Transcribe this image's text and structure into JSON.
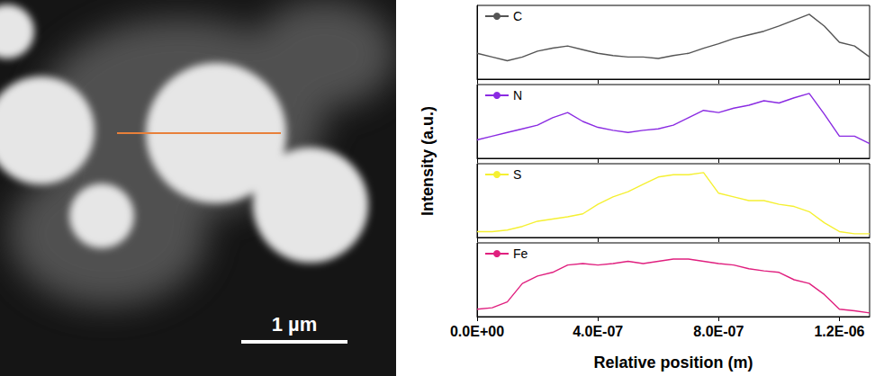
{
  "image": {
    "scale_bar": "1 µm"
  },
  "ylabel": "Intensity (a.u.)",
  "chart_data": [
    {
      "type": "line",
      "x": [
        0,
        5e-08,
        1e-07,
        1.5e-07,
        2e-07,
        2.5e-07,
        3e-07,
        3.5e-07,
        4e-07,
        4.5e-07,
        5e-07,
        5.5e-07,
        6e-07,
        6.5e-07,
        7e-07,
        7.5e-07,
        8e-07,
        8.5e-07,
        9e-07,
        9.5e-07,
        1e-06,
        1.05e-06,
        1.1e-06,
        1.15e-06,
        1.2e-06,
        1.25e-06,
        1.3e-06
      ],
      "series": [
        {
          "name": "C",
          "color": "#555555",
          "values": [
            0.35,
            0.3,
            0.25,
            0.3,
            0.38,
            0.42,
            0.45,
            0.4,
            0.35,
            0.32,
            0.3,
            0.3,
            0.28,
            0.32,
            0.35,
            0.42,
            0.48,
            0.55,
            0.6,
            0.65,
            0.72,
            0.8,
            0.88,
            0.72,
            0.5,
            0.45,
            0.3
          ]
        }
      ],
      "xlim": [
        0,
        1.3e-06
      ],
      "xticks": [
        {
          "value": 0,
          "label": "0.0E+00"
        },
        {
          "value": 4e-07,
          "label": "4.0E-07"
        },
        {
          "value": 8e-07,
          "label": "8.0E-07"
        },
        {
          "value": 1.2e-06,
          "label": "1.2E-06"
        }
      ],
      "ylim": [
        0,
        1
      ],
      "legend": "upper left",
      "grid": false,
      "tick_labels": false
    },
    {
      "type": "line",
      "x": [
        0,
        5e-08,
        1e-07,
        1.5e-07,
        2e-07,
        2.5e-07,
        3e-07,
        3.5e-07,
        4e-07,
        4.5e-07,
        5e-07,
        5.5e-07,
        6e-07,
        6.5e-07,
        7e-07,
        7.5e-07,
        8e-07,
        8.5e-07,
        9e-07,
        9.5e-07,
        1e-06,
        1.05e-06,
        1.1e-06,
        1.15e-06,
        1.2e-06,
        1.25e-06,
        1.3e-06
      ],
      "series": [
        {
          "name": "N",
          "color": "#8a2be2",
          "values": [
            0.25,
            0.3,
            0.35,
            0.4,
            0.45,
            0.55,
            0.62,
            0.5,
            0.42,
            0.38,
            0.35,
            0.38,
            0.4,
            0.45,
            0.55,
            0.65,
            0.62,
            0.68,
            0.72,
            0.78,
            0.75,
            0.82,
            0.88,
            0.6,
            0.3,
            0.3,
            0.2
          ]
        }
      ],
      "xlim": [
        0,
        1.3e-06
      ],
      "xticks": [
        {
          "value": 0,
          "label": "0.0E+00"
        },
        {
          "value": 4e-07,
          "label": "4.0E-07"
        },
        {
          "value": 8e-07,
          "label": "8.0E-07"
        },
        {
          "value": 1.2e-06,
          "label": "1.2E-06"
        }
      ],
      "ylim": [
        0,
        1
      ],
      "legend": "upper left",
      "grid": false,
      "tick_labels": false
    },
    {
      "type": "line",
      "x": [
        0,
        5e-08,
        1e-07,
        1.5e-07,
        2e-07,
        2.5e-07,
        3e-07,
        3.5e-07,
        4e-07,
        4.5e-07,
        5e-07,
        5.5e-07,
        6e-07,
        6.5e-07,
        7e-07,
        7.5e-07,
        8e-07,
        8.5e-07,
        9e-07,
        9.5e-07,
        1e-06,
        1.05e-06,
        1.1e-06,
        1.15e-06,
        1.2e-06,
        1.25e-06,
        1.3e-06
      ],
      "series": [
        {
          "name": "S",
          "color": "#f5f032",
          "values": [
            0.08,
            0.08,
            0.1,
            0.15,
            0.22,
            0.25,
            0.28,
            0.32,
            0.45,
            0.55,
            0.62,
            0.72,
            0.82,
            0.85,
            0.85,
            0.88,
            0.6,
            0.55,
            0.5,
            0.5,
            0.45,
            0.42,
            0.35,
            0.2,
            0.08,
            0.05,
            0.05
          ]
        }
      ],
      "xlim": [
        0,
        1.3e-06
      ],
      "xticks": [
        {
          "value": 0,
          "label": "0.0E+00"
        },
        {
          "value": 4e-07,
          "label": "4.0E-07"
        },
        {
          "value": 8e-07,
          "label": "8.0E-07"
        },
        {
          "value": 1.2e-06,
          "label": "1.2E-06"
        }
      ],
      "ylim": [
        0,
        1
      ],
      "legend": "upper left",
      "grid": false,
      "tick_labels": false
    },
    {
      "type": "line",
      "x": [
        0,
        5e-08,
        1e-07,
        1.5e-07,
        2e-07,
        2.5e-07,
        3e-07,
        3.5e-07,
        4e-07,
        4.5e-07,
        5e-07,
        5.5e-07,
        6e-07,
        6.5e-07,
        7e-07,
        7.5e-07,
        8e-07,
        8.5e-07,
        9e-07,
        9.5e-07,
        1e-06,
        1.05e-06,
        1.1e-06,
        1.15e-06,
        1.2e-06,
        1.25e-06,
        1.3e-06
      ],
      "series": [
        {
          "name": "Fe",
          "color": "#e0207f",
          "values": [
            0.1,
            0.12,
            0.2,
            0.45,
            0.55,
            0.6,
            0.7,
            0.72,
            0.7,
            0.72,
            0.75,
            0.72,
            0.75,
            0.78,
            0.78,
            0.75,
            0.72,
            0.7,
            0.65,
            0.62,
            0.6,
            0.5,
            0.45,
            0.3,
            0.1,
            0.08,
            0.05
          ]
        }
      ],
      "xlim": [
        0,
        1.3e-06
      ],
      "xticks": [
        {
          "value": 0,
          "label": "0.0E+00"
        },
        {
          "value": 4e-07,
          "label": "4.0E-07"
        },
        {
          "value": 8e-07,
          "label": "8.0E-07"
        },
        {
          "value": 1.2e-06,
          "label": "1.2E-06"
        }
      ],
      "xlabel": "Relative position (m)",
      "ylim": [
        0,
        1
      ],
      "legend": "upper left",
      "grid": false,
      "tick_labels": "x"
    }
  ]
}
